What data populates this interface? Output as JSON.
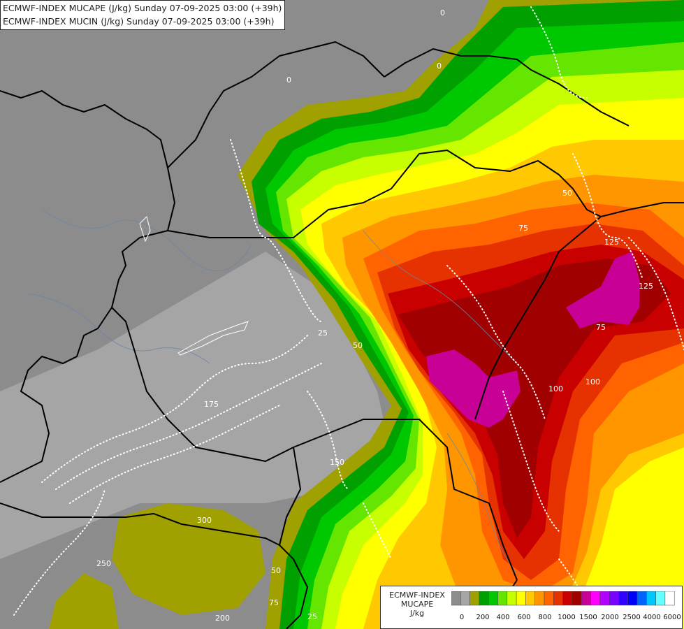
{
  "header": {
    "line1": "ECMWF-INDEX MUCAPE (J/kg) Sunday 07-09-2025 03:00 (+39h)",
    "line2": "ECMWF-INDEX MUCIN (J/kg) Sunday 07-09-2025 03:00 (+39h)"
  },
  "legend": {
    "line1": "ECMWF-INDEX",
    "line2": "MUCAPE",
    "line3": "J/kg",
    "colors": [
      "#8c8c8c",
      "#a6a6a6",
      "#a0a000",
      "#00a000",
      "#00c800",
      "#64e600",
      "#c8ff00",
      "#ffff00",
      "#ffc800",
      "#ff9600",
      "#ff6400",
      "#e63200",
      "#c80000",
      "#a00000",
      "#c80096",
      "#ff00ff",
      "#b400ff",
      "#7800ff",
      "#3200ff",
      "#0000ff",
      "#0064ff",
      "#00c8ff",
      "#64ffff",
      "#ffffff"
    ],
    "ticks": [
      "0",
      "200",
      "400",
      "600",
      "800",
      "1000",
      "1500",
      "2000",
      "2500",
      "4000",
      "6000"
    ]
  },
  "contour_labels": [
    "0",
    "0",
    "0",
    "25",
    "50",
    "50",
    "75",
    "75",
    "125",
    "125",
    "100",
    "100",
    "150",
    "175",
    "200",
    "250",
    "300",
    "25",
    "50",
    "75"
  ]
}
